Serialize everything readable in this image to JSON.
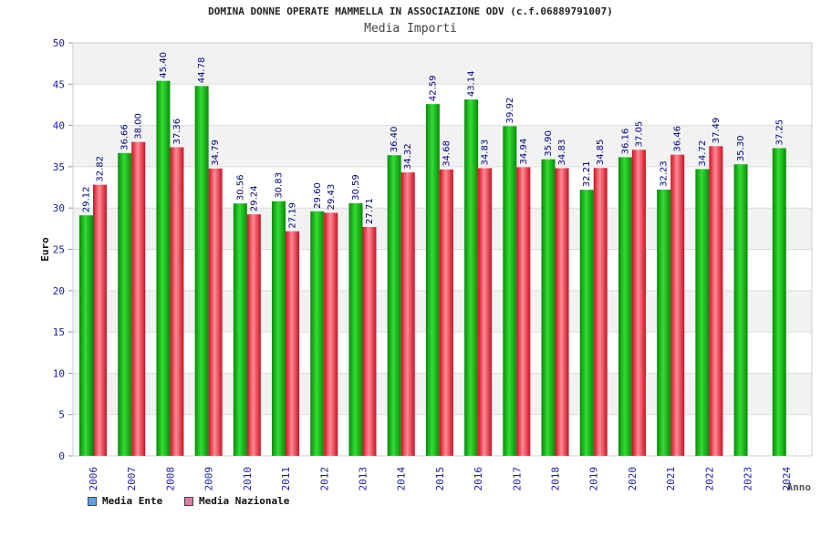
{
  "header": {
    "title": "DOMINA DONNE OPERATE MAMMELLA IN ASSOCIAZIONE ODV (c.f.06889791007)",
    "subtitle": "Media Importi"
  },
  "legend": {
    "items": [
      {
        "label": "Media Ente",
        "color": "#5aa0e6"
      },
      {
        "label": "Media Nazionale",
        "color": "#e07aa6"
      }
    ]
  },
  "colors": {
    "ente_bar": "#11aa11",
    "nazionale_bar": "#ee2233",
    "value_label": "#000080",
    "tick_label": "#1a1aa6",
    "band": "#f2f2f2"
  },
  "chart_data": {
    "type": "bar",
    "title": "DOMINA DONNE OPERATE MAMMELLA IN ASSOCIAZIONE ODV (c.f.06889791007)",
    "subtitle": "Media Importi",
    "xlabel": "Anno",
    "ylabel": "Euro",
    "ylim": [
      0,
      50
    ],
    "yticks": [
      0,
      5,
      10,
      15,
      20,
      25,
      30,
      35,
      40,
      45,
      50
    ],
    "grid": true,
    "legend_position": "bottom-left",
    "categories": [
      "2006",
      "2007",
      "2008",
      "2009",
      "2010",
      "2011",
      "2012",
      "2013",
      "2014",
      "2015",
      "2016",
      "2017",
      "2018",
      "2019",
      "2020",
      "2021",
      "2022",
      "2023",
      "2024"
    ],
    "series": [
      {
        "name": "Media Ente",
        "values": [
          29.12,
          36.66,
          45.4,
          44.78,
          30.56,
          30.83,
          29.6,
          30.59,
          36.4,
          42.59,
          43.14,
          39.92,
          35.9,
          32.21,
          36.16,
          32.23,
          34.72,
          35.3,
          37.25
        ]
      },
      {
        "name": "Media Nazionale",
        "values": [
          32.82,
          38.0,
          37.36,
          34.79,
          29.24,
          27.19,
          29.43,
          27.71,
          34.32,
          34.68,
          34.83,
          34.94,
          34.83,
          34.85,
          37.05,
          36.46,
          37.49,
          null,
          null
        ]
      }
    ]
  }
}
